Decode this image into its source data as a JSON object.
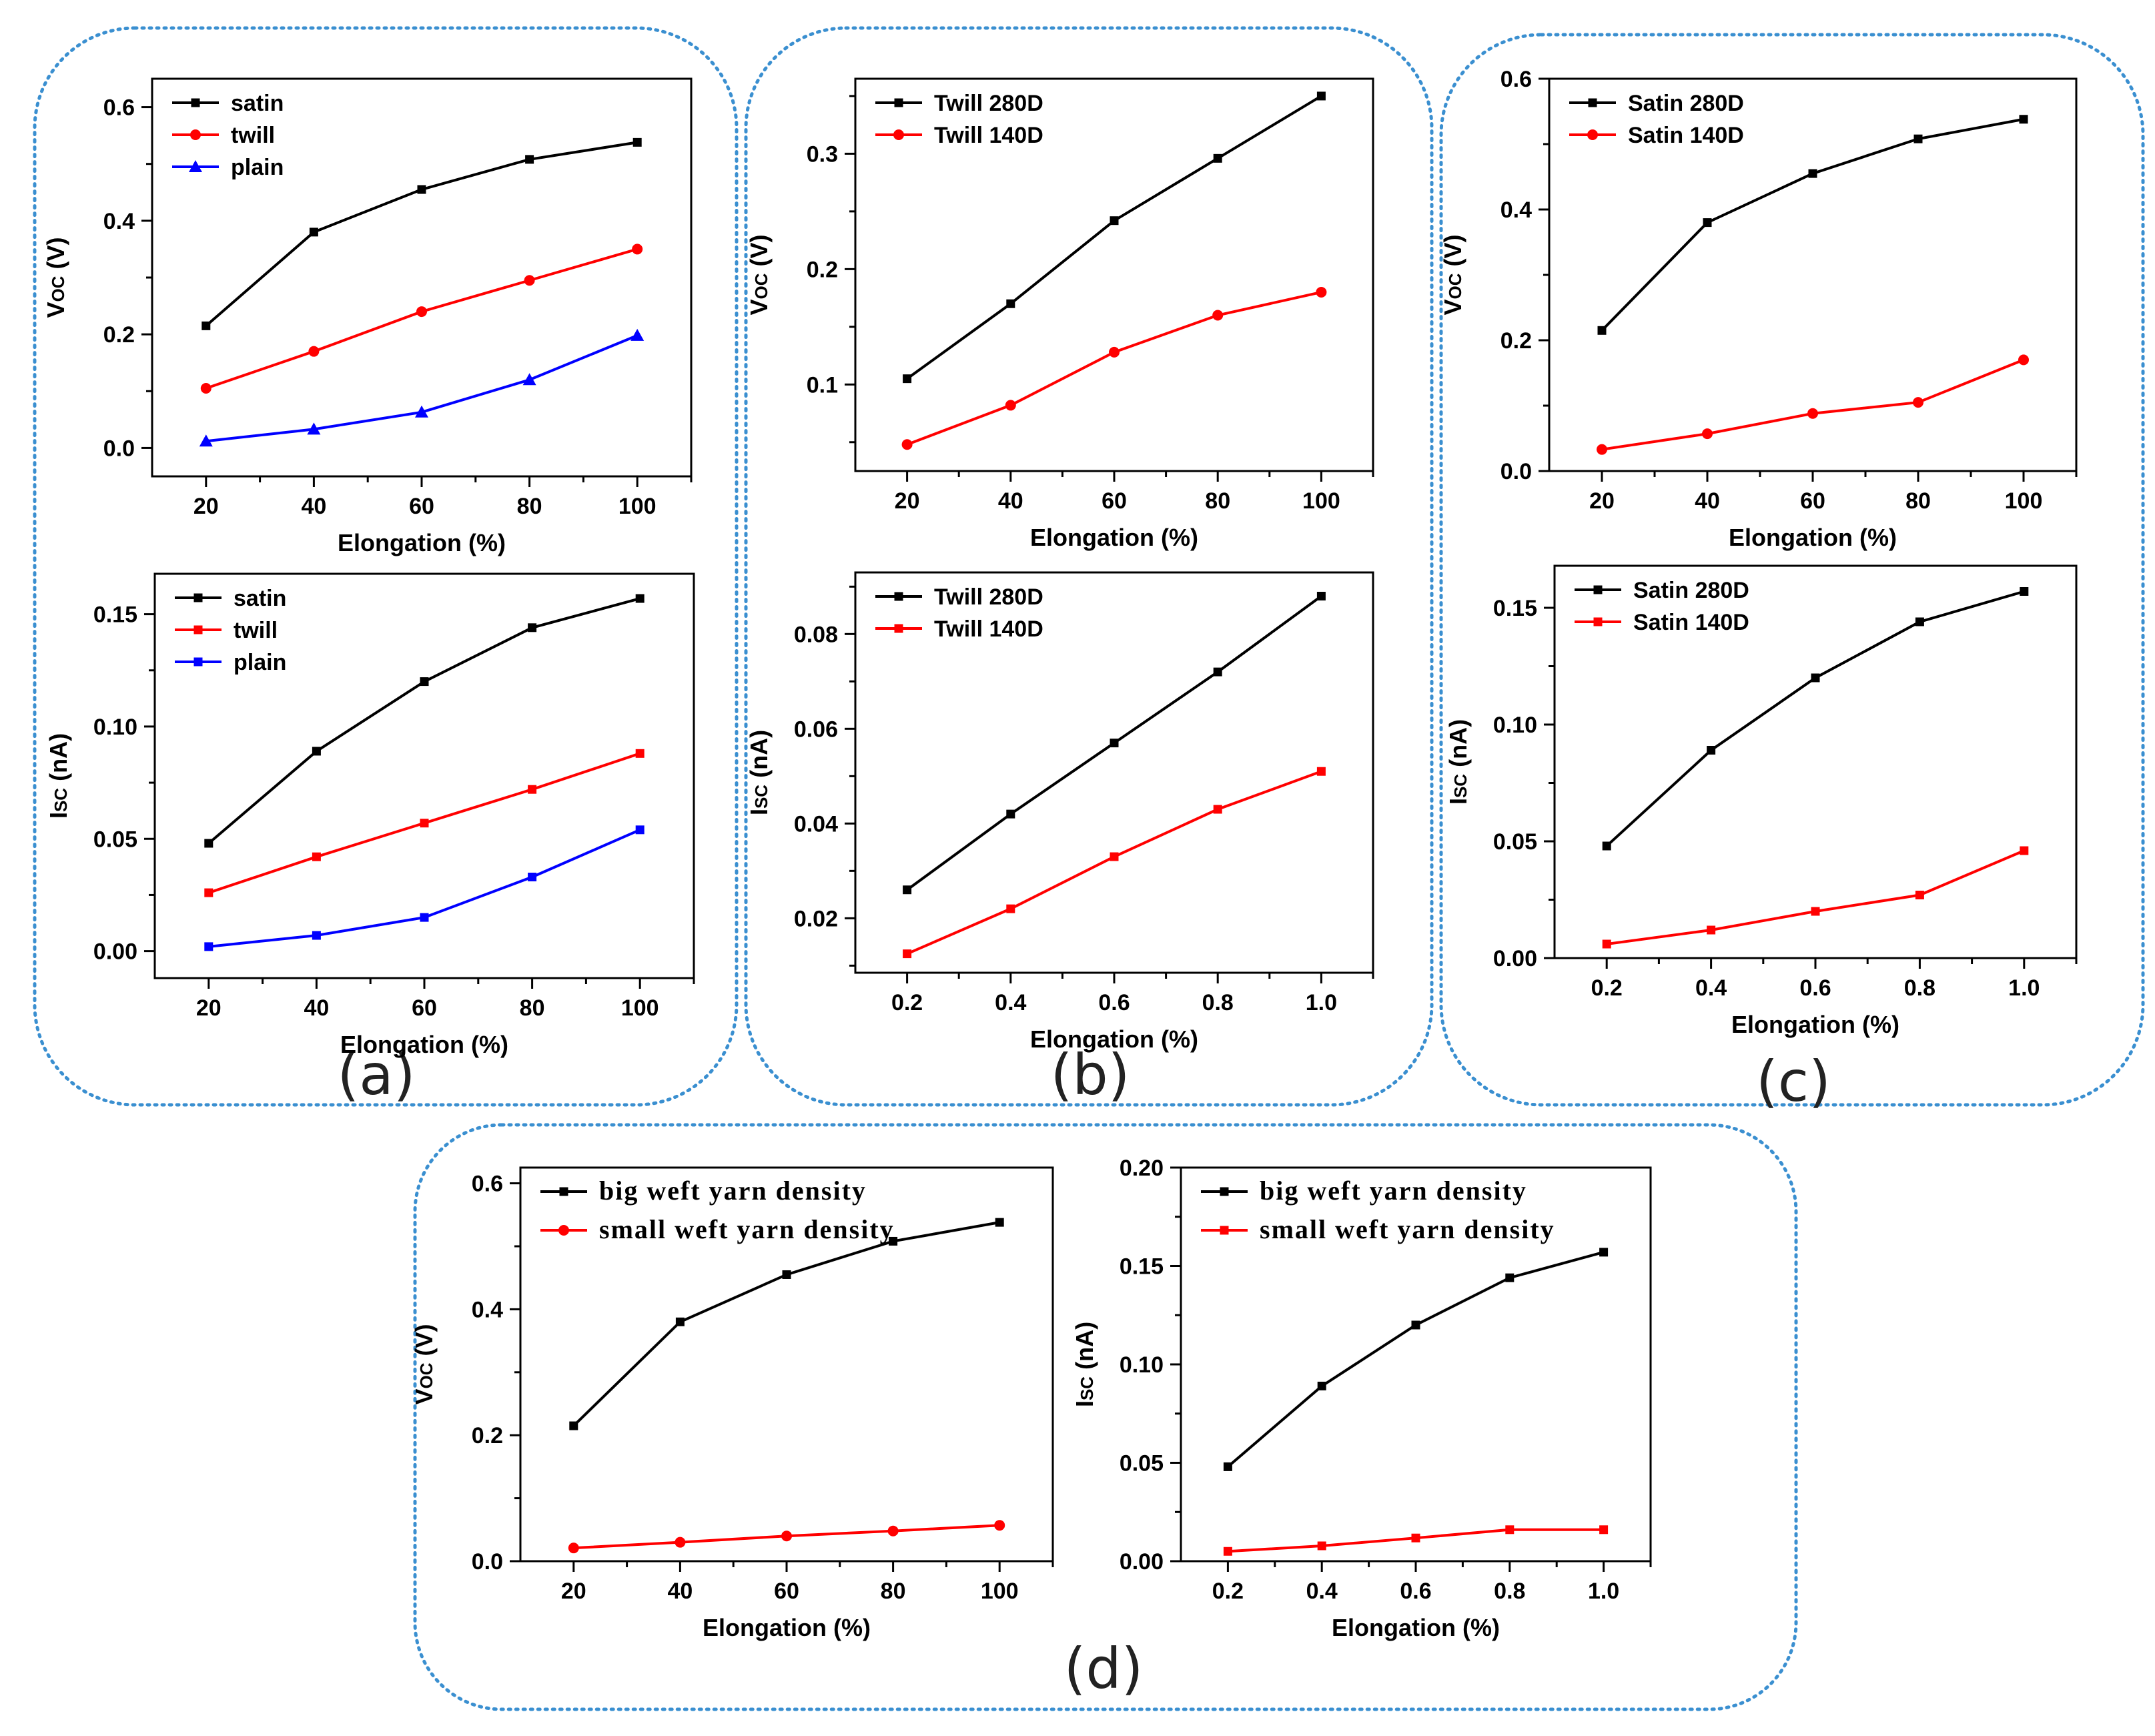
{
  "colors": {
    "black": "#000000",
    "red": "#ff0000",
    "blue": "#0000ff",
    "frame": "#3a8fd0"
  },
  "panel_labels": {
    "a": "(a)",
    "b": "(b)",
    "c": "(c)",
    "d": "(d)"
  },
  "chart_data": [
    {
      "id": "a-voc",
      "type": "line",
      "xlabel": "Elongation (%)",
      "ylabel": "V",
      "ylabel_sub": "OC",
      "ylabel_unit": " (V)",
      "xlim": [
        10,
        110
      ],
      "ylim": [
        -0.05,
        0.65
      ],
      "xticks": [
        20,
        40,
        60,
        80,
        100
      ],
      "yticks": [
        0.0,
        0.2,
        0.4,
        0.6
      ],
      "xtick_labels": [
        "20",
        "40",
        "60",
        "80",
        "100"
      ],
      "ytick_labels": [
        "0.0",
        "0.2",
        "0.4",
        "0.6"
      ],
      "legend_style": "sans",
      "x": [
        20,
        40,
        60,
        80,
        100
      ],
      "series": [
        {
          "name": "satin",
          "color": "#000000",
          "marker": "square",
          "values": [
            0.215,
            0.38,
            0.455,
            0.508,
            0.538
          ]
        },
        {
          "name": "twill",
          "color": "#ff0000",
          "marker": "circle",
          "values": [
            0.105,
            0.17,
            0.24,
            0.295,
            0.35
          ]
        },
        {
          "name": "plain",
          "color": "#0000ff",
          "marker": "triangle",
          "values": [
            0.012,
            0.033,
            0.063,
            0.12,
            0.198
          ]
        }
      ]
    },
    {
      "id": "a-isc",
      "type": "line",
      "xlabel": "Elongation (%)",
      "ylabel": "I",
      "ylabel_sub": "SC",
      "ylabel_unit": " (nA)",
      "xlim": [
        10,
        110
      ],
      "ylim": [
        -0.012,
        0.168
      ],
      "xticks": [
        20,
        40,
        60,
        80,
        100
      ],
      "yticks": [
        0.0,
        0.05,
        0.1,
        0.15
      ],
      "xtick_labels": [
        "20",
        "40",
        "60",
        "80",
        "100"
      ],
      "ytick_labels": [
        "0.00",
        "0.05",
        "0.10",
        "0.15"
      ],
      "legend_style": "sans",
      "x": [
        20,
        40,
        60,
        80,
        100
      ],
      "series": [
        {
          "name": "satin",
          "color": "#000000",
          "marker": "square",
          "values": [
            0.048,
            0.089,
            0.12,
            0.144,
            0.157
          ]
        },
        {
          "name": "twill",
          "color": "#ff0000",
          "marker": "square",
          "values": [
            0.026,
            0.042,
            0.057,
            0.072,
            0.088
          ]
        },
        {
          "name": "plain",
          "color": "#0000ff",
          "marker": "square",
          "values": [
            0.002,
            0.007,
            0.015,
            0.033,
            0.054
          ]
        }
      ]
    },
    {
      "id": "b-voc",
      "type": "line",
      "xlabel": "Elongation (%)",
      "ylabel": "V",
      "ylabel_sub": "OC",
      "ylabel_unit": " (V)",
      "xlim": [
        10,
        110
      ],
      "ylim": [
        0.025,
        0.365
      ],
      "xticks": [
        20,
        40,
        60,
        80,
        100
      ],
      "yticks": [
        0.1,
        0.2,
        0.3
      ],
      "xtick_labels": [
        "20",
        "40",
        "60",
        "80",
        "100"
      ],
      "ytick_labels": [
        "0.1",
        "0.2",
        "0.3"
      ],
      "legend_style": "sans",
      "x": [
        20,
        40,
        60,
        80,
        100
      ],
      "series": [
        {
          "name": "Twill 280D",
          "color": "#000000",
          "marker": "square",
          "values": [
            0.105,
            0.17,
            0.242,
            0.296,
            0.35
          ]
        },
        {
          "name": "Twill 140D",
          "color": "#ff0000",
          "marker": "circle",
          "values": [
            0.048,
            0.082,
            0.128,
            0.16,
            0.18
          ]
        }
      ]
    },
    {
      "id": "b-isc",
      "type": "line",
      "xlabel": "Elongation (%)",
      "ylabel": "I",
      "ylabel_sub": "SC",
      "ylabel_unit": " (nA)",
      "xlim": [
        0.1,
        1.1
      ],
      "ylim": [
        0.0085,
        0.093
      ],
      "xticks": [
        0.2,
        0.4,
        0.6,
        0.8,
        1.0
      ],
      "yticks": [
        0.02,
        0.04,
        0.06,
        0.08
      ],
      "xtick_labels": [
        "0.2",
        "0.4",
        "0.6",
        "0.8",
        "1.0"
      ],
      "ytick_labels": [
        "0.02",
        "0.04",
        "0.06",
        "0.08"
      ],
      "legend_style": "sans",
      "x": [
        0.2,
        0.4,
        0.6,
        0.8,
        1.0
      ],
      "series": [
        {
          "name": "Twill 280D",
          "color": "#000000",
          "marker": "square",
          "values": [
            0.026,
            0.042,
            0.057,
            0.072,
            0.088
          ]
        },
        {
          "name": "Twill 140D",
          "color": "#ff0000",
          "marker": "square",
          "values": [
            0.0125,
            0.022,
            0.033,
            0.043,
            0.051
          ]
        }
      ]
    },
    {
      "id": "c-voc",
      "type": "line",
      "xlabel": "Elongation (%)",
      "ylabel": "V",
      "ylabel_sub": "OC",
      "ylabel_unit": " (V)",
      "xlim": [
        10,
        110
      ],
      "ylim": [
        0.0,
        0.6
      ],
      "xticks": [
        20,
        40,
        60,
        80,
        100
      ],
      "yticks": [
        0.0,
        0.2,
        0.4,
        0.6
      ],
      "xtick_labels": [
        "20",
        "40",
        "60",
        "80",
        "100"
      ],
      "ytick_labels": [
        "0.0",
        "0.2",
        "0.4",
        "0.6"
      ],
      "legend_style": "sans",
      "x": [
        20,
        40,
        60,
        80,
        100
      ],
      "series": [
        {
          "name": "Satin 280D",
          "color": "#000000",
          "marker": "square",
          "values": [
            0.215,
            0.38,
            0.455,
            0.508,
            0.538
          ]
        },
        {
          "name": "Satin 140D",
          "color": "#ff0000",
          "marker": "circle",
          "values": [
            0.033,
            0.057,
            0.088,
            0.105,
            0.17
          ]
        }
      ]
    },
    {
      "id": "c-isc",
      "type": "line",
      "xlabel": "Elongation (%)",
      "ylabel": "I",
      "ylabel_sub": "SC",
      "ylabel_unit": " (nA)",
      "xlim": [
        0.1,
        1.1
      ],
      "ylim": [
        0.0,
        0.168
      ],
      "xticks": [
        0.2,
        0.4,
        0.6,
        0.8,
        1.0
      ],
      "yticks": [
        0.0,
        0.05,
        0.1,
        0.15
      ],
      "xtick_labels": [
        "0.2",
        "0.4",
        "0.6",
        "0.8",
        "1.0"
      ],
      "ytick_labels": [
        "0.00",
        "0.05",
        "0.10",
        "0.15"
      ],
      "legend_style": "sans",
      "x": [
        0.2,
        0.4,
        0.6,
        0.8,
        1.0
      ],
      "series": [
        {
          "name": "Satin 280D",
          "color": "#000000",
          "marker": "square",
          "values": [
            0.048,
            0.089,
            0.12,
            0.144,
            0.157
          ]
        },
        {
          "name": "Satin 140D",
          "color": "#ff0000",
          "marker": "square",
          "values": [
            0.006,
            0.012,
            0.02,
            0.027,
            0.046
          ]
        }
      ]
    },
    {
      "id": "d-voc",
      "type": "line",
      "xlabel": "Elongation (%)",
      "ylabel": "V",
      "ylabel_sub": "OC",
      "ylabel_unit": " (V)",
      "xlim": [
        10,
        110
      ],
      "ylim": [
        0.0,
        0.625
      ],
      "xticks": [
        20,
        40,
        60,
        80,
        100
      ],
      "yticks": [
        0.0,
        0.2,
        0.4,
        0.6
      ],
      "xtick_labels": [
        "20",
        "40",
        "60",
        "80",
        "100"
      ],
      "ytick_labels": [
        "0.0",
        "0.2",
        "0.4",
        "0.6"
      ],
      "legend_style": "serif",
      "x": [
        20,
        40,
        60,
        80,
        100
      ],
      "series": [
        {
          "name": "big weft yarn density",
          "color": "#000000",
          "marker": "square",
          "values": [
            0.215,
            0.38,
            0.455,
            0.508,
            0.538
          ]
        },
        {
          "name": "small weft yarn density",
          "color": "#ff0000",
          "marker": "circle",
          "values": [
            0.021,
            0.03,
            0.04,
            0.048,
            0.057
          ]
        }
      ]
    },
    {
      "id": "d-isc",
      "type": "line",
      "xlabel": "Elongation (%)",
      "ylabel": "I",
      "ylabel_sub": "SC",
      "ylabel_unit": " (nA)",
      "xlim": [
        0.1,
        1.1
      ],
      "ylim": [
        0.0,
        0.2
      ],
      "xticks": [
        0.2,
        0.4,
        0.6,
        0.8,
        1.0
      ],
      "yticks": [
        0.0,
        0.05,
        0.1,
        0.15,
        0.2
      ],
      "xtick_labels": [
        "0.2",
        "0.4",
        "0.6",
        "0.8",
        "1.0"
      ],
      "ytick_labels": [
        "0.00",
        "0.05",
        "0.10",
        "0.15",
        "0.20"
      ],
      "legend_style": "serif",
      "x": [
        0.2,
        0.4,
        0.6,
        0.8,
        1.0
      ],
      "series": [
        {
          "name": "big weft yarn density",
          "color": "#000000",
          "marker": "square",
          "values": [
            0.048,
            0.089,
            0.12,
            0.144,
            0.157
          ]
        },
        {
          "name": "small weft yarn density",
          "color": "#ff0000",
          "marker": "square",
          "values": [
            0.005,
            0.0078,
            0.0118,
            0.016,
            0.016
          ]
        }
      ]
    }
  ]
}
